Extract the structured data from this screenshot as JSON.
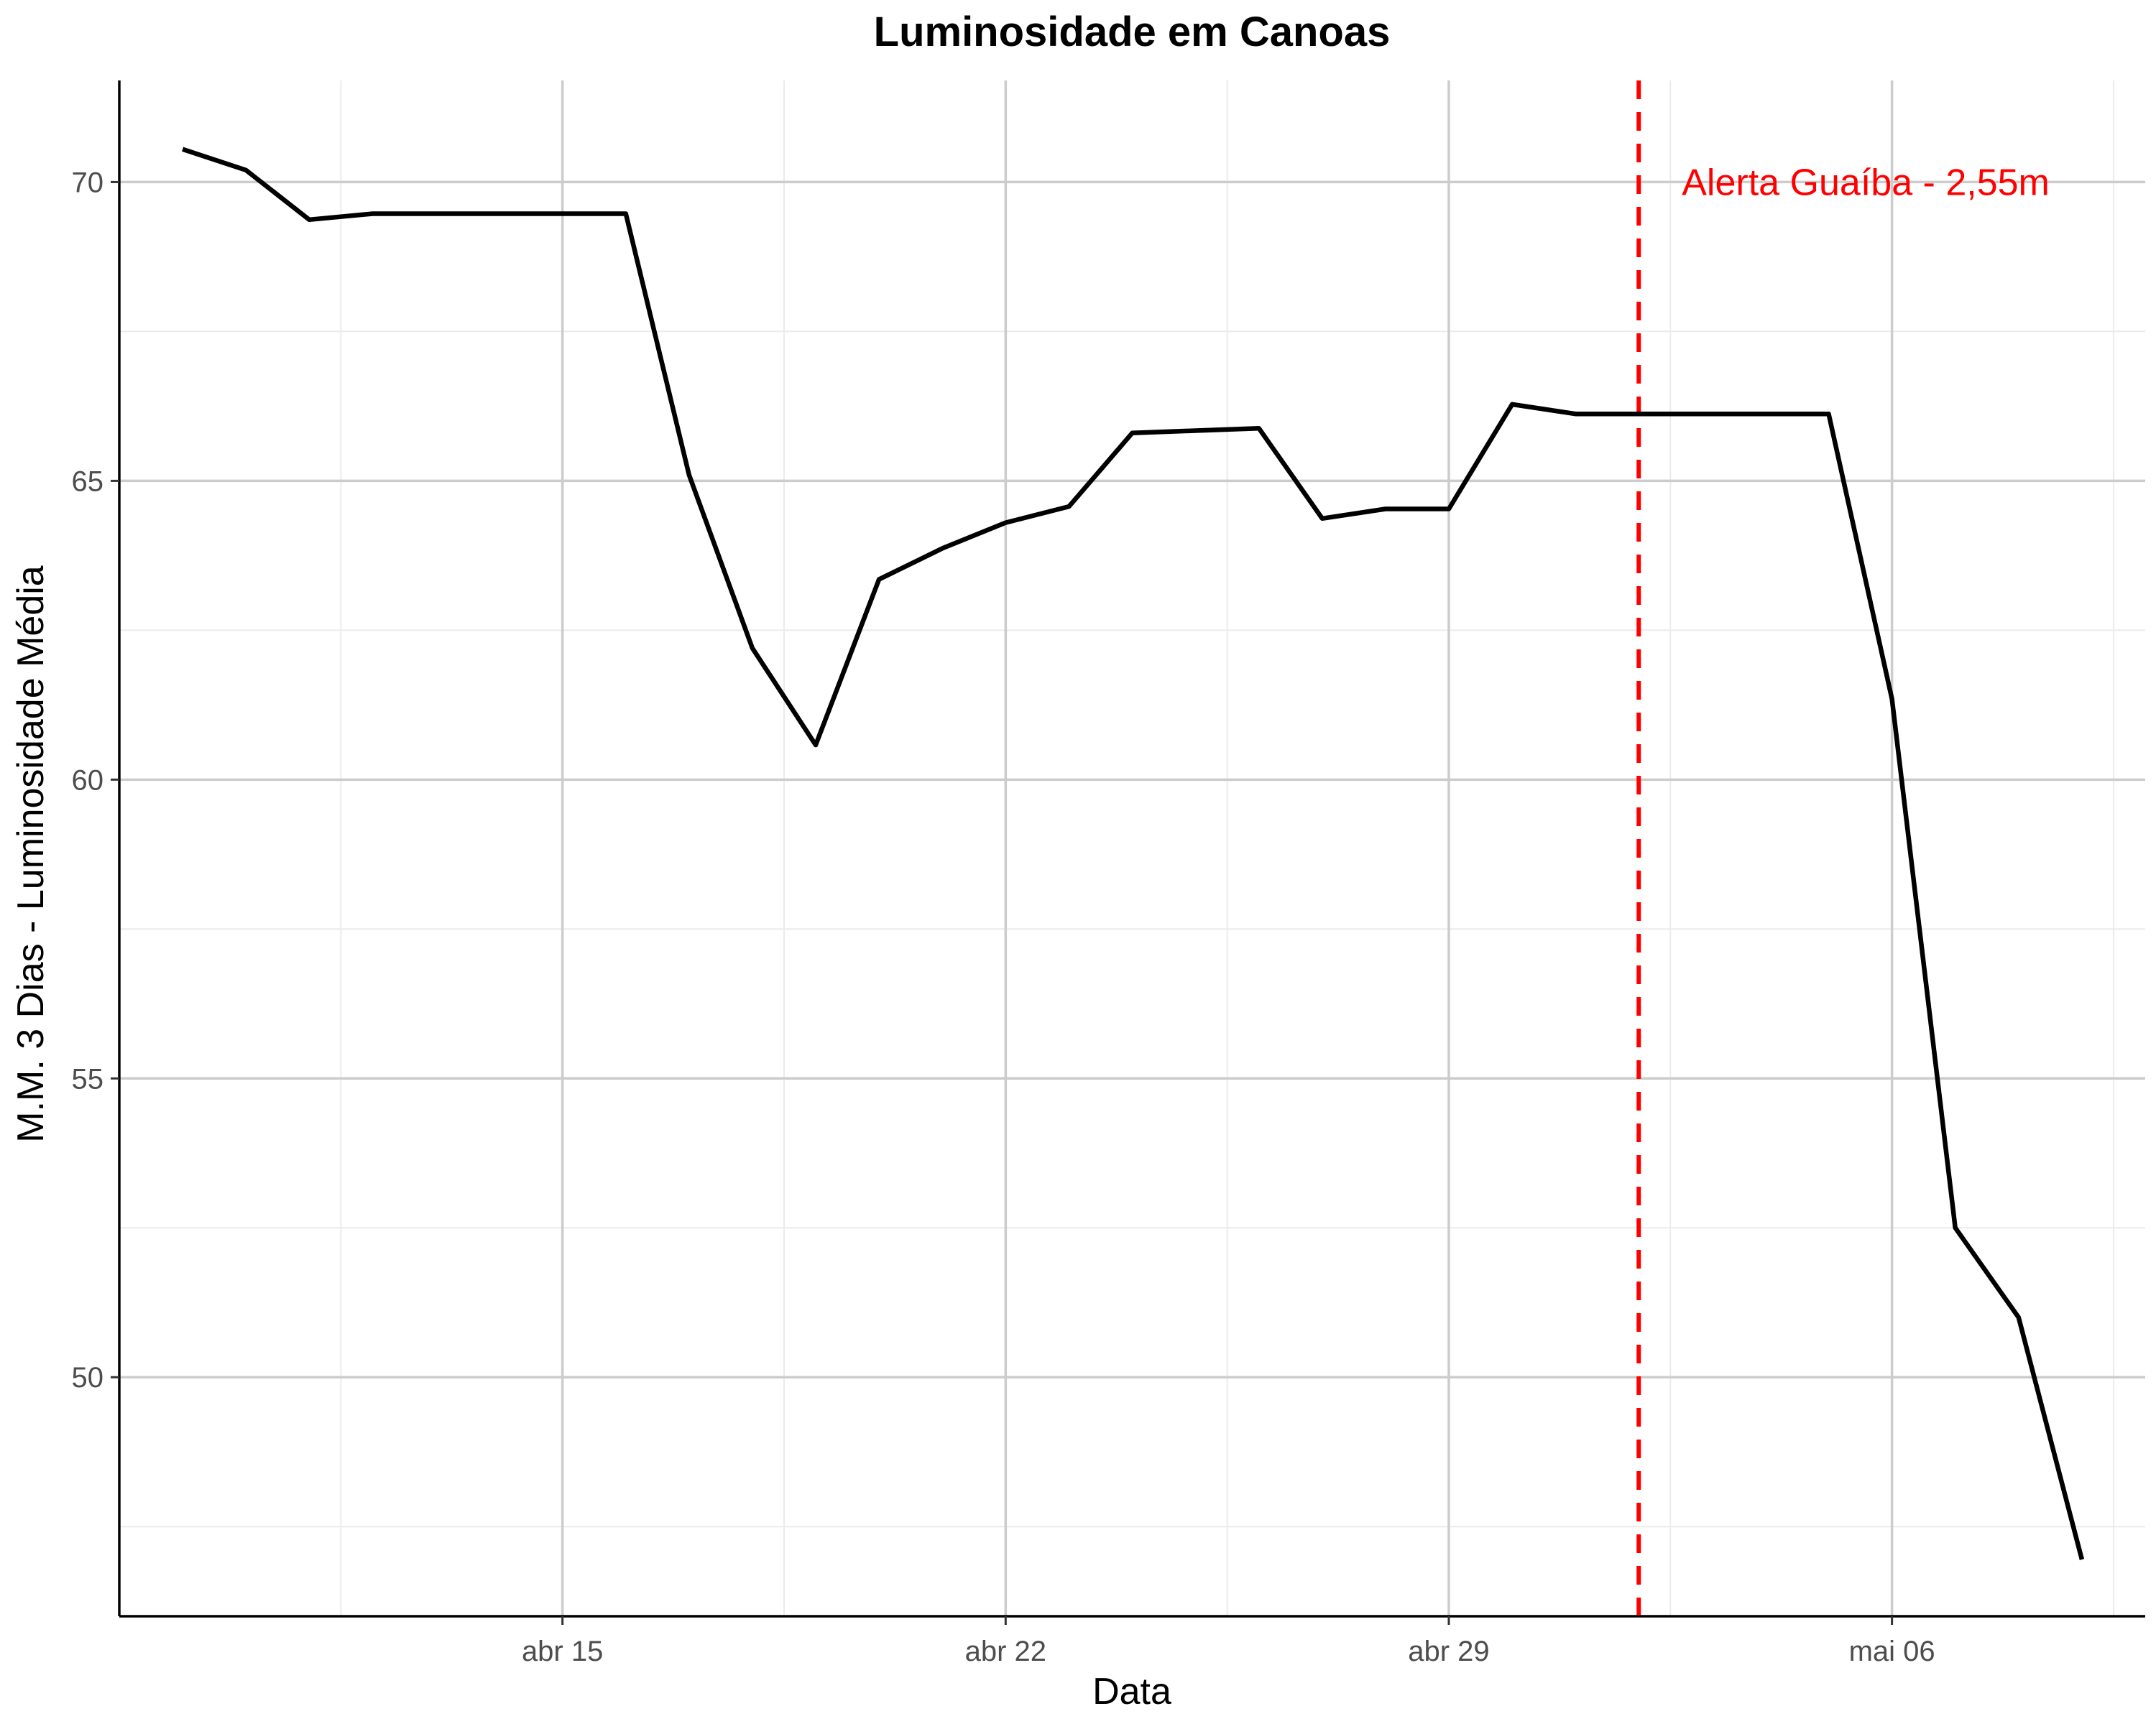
{
  "chart_data": {
    "type": "line",
    "title": "Luminosidade em Canoas",
    "xlabel": "Data",
    "ylabel": "M.M. 3 Dias - Luminosidade Média",
    "x_ticks": [
      {
        "date": "2024-04-15",
        "label": "abr 15"
      },
      {
        "date": "2024-04-22",
        "label": "abr 22"
      },
      {
        "date": "2024-04-29",
        "label": "abr 29"
      },
      {
        "date": "2024-05-06",
        "label": "mai 06"
      }
    ],
    "y_ticks": [
      50,
      55,
      60,
      65,
      70
    ],
    "xlim": [
      "2024-04-08",
      "2024-05-10"
    ],
    "ylim": [
      46.0,
      71.7
    ],
    "grid": true,
    "line_color": "#000000",
    "series": [
      {
        "x": [
          "2024-04-09",
          "2024-04-10",
          "2024-04-11",
          "2024-04-12",
          "2024-04-13",
          "2024-04-14",
          "2024-04-15",
          "2024-04-16",
          "2024-04-17",
          "2024-04-18",
          "2024-04-19",
          "2024-04-20",
          "2024-04-21",
          "2024-04-22",
          "2024-04-23",
          "2024-04-24",
          "2024-04-25",
          "2024-04-26",
          "2024-04-27",
          "2024-04-28",
          "2024-04-29",
          "2024-04-30",
          "2024-05-01",
          "2024-05-02",
          "2024-05-03",
          "2024-05-04",
          "2024-05-05",
          "2024-05-06",
          "2024-05-07",
          "2024-05-08",
          "2024-05-09"
        ],
        "y": [
          70.55,
          70.2,
          69.37,
          69.47,
          69.47,
          69.47,
          69.47,
          69.47,
          65.1,
          62.2,
          60.58,
          63.35,
          63.87,
          64.3,
          64.57,
          65.8,
          65.84,
          65.88,
          64.37,
          64.53,
          64.53,
          66.28,
          66.12,
          66.12,
          66.12,
          66.12,
          66.12,
          61.35,
          52.5,
          51.0,
          46.95
        ]
      }
    ],
    "annotation": {
      "date": "2024-05-02",
      "text": "Alerta Guaíba - 2,55m",
      "label_y": 70.0,
      "color": "#ff0000"
    }
  }
}
